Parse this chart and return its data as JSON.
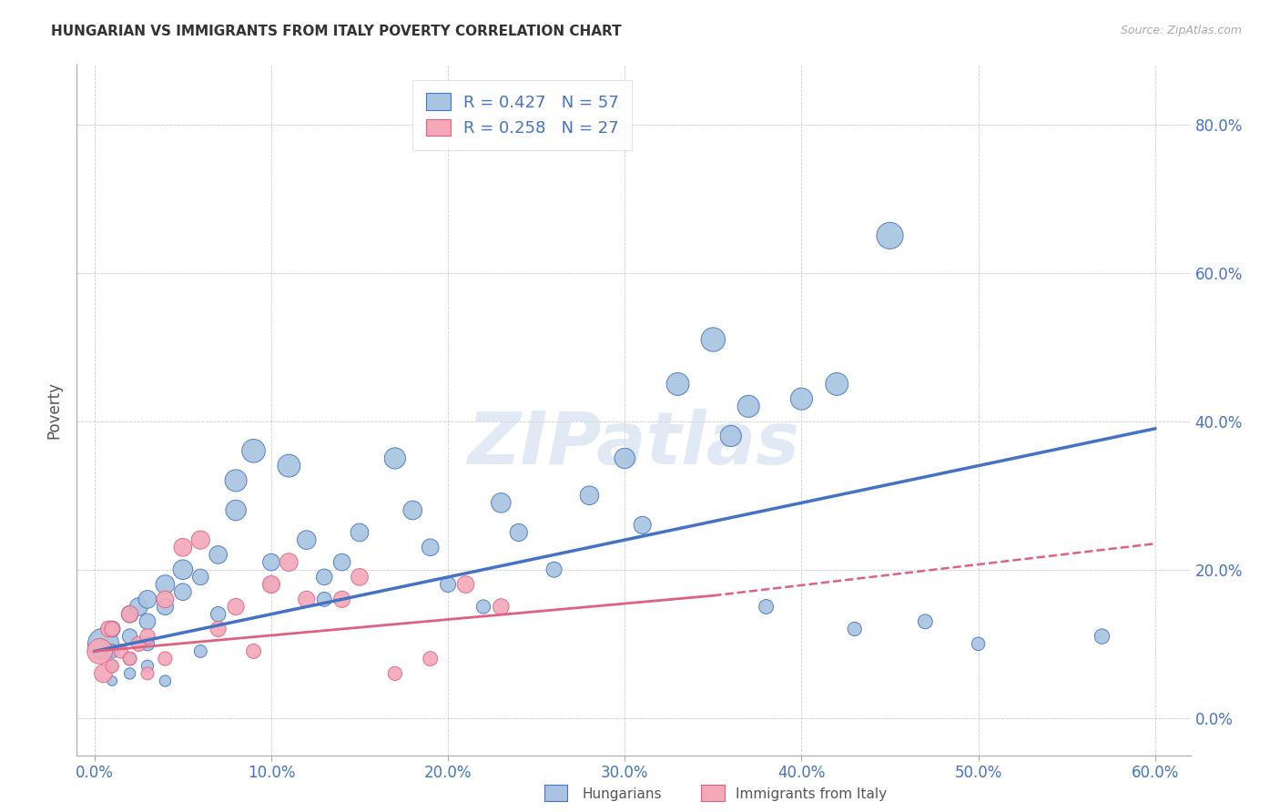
{
  "title": "HUNGARIAN VS IMMIGRANTS FROM ITALY POVERTY CORRELATION CHART",
  "source": "Source: ZipAtlas.com",
  "xlabel_ticks": [
    "0.0%",
    "10.0%",
    "20.0%",
    "30.0%",
    "40.0%",
    "50.0%",
    "60.0%"
  ],
  "ylabel_ticks": [
    "0.0%",
    "20.0%",
    "40.0%",
    "60.0%",
    "80.0%"
  ],
  "ylabel": "Poverty",
  "xlim": [
    -0.01,
    0.62
  ],
  "ylim": [
    -0.05,
    0.88
  ],
  "blue_R": 0.427,
  "blue_N": 57,
  "pink_R": 0.258,
  "pink_N": 27,
  "blue_color": "#a8c4e0",
  "pink_color": "#f4a8b8",
  "blue_line_color": "#4472c4",
  "pink_line_color": "#e06080",
  "legend_label_blue": "Hungarians",
  "legend_label_pink": "Immigrants from Italy",
  "watermark": "ZIPatlas",
  "blue_scatter_x": [
    0.005,
    0.01,
    0.01,
    0.01,
    0.01,
    0.02,
    0.02,
    0.02,
    0.02,
    0.025,
    0.03,
    0.03,
    0.03,
    0.03,
    0.04,
    0.04,
    0.04,
    0.05,
    0.05,
    0.06,
    0.06,
    0.07,
    0.07,
    0.08,
    0.08,
    0.09,
    0.1,
    0.1,
    0.11,
    0.12,
    0.13,
    0.13,
    0.14,
    0.15,
    0.17,
    0.18,
    0.19,
    0.2,
    0.22,
    0.23,
    0.24,
    0.26,
    0.28,
    0.3,
    0.31,
    0.33,
    0.35,
    0.36,
    0.37,
    0.38,
    0.4,
    0.42,
    0.43,
    0.45,
    0.47,
    0.5,
    0.57
  ],
  "blue_scatter_y": [
    0.1,
    0.12,
    0.09,
    0.07,
    0.05,
    0.14,
    0.11,
    0.08,
    0.06,
    0.15,
    0.16,
    0.13,
    0.1,
    0.07,
    0.18,
    0.15,
    0.05,
    0.2,
    0.17,
    0.19,
    0.09,
    0.22,
    0.14,
    0.32,
    0.28,
    0.36,
    0.21,
    0.18,
    0.34,
    0.24,
    0.19,
    0.16,
    0.21,
    0.25,
    0.35,
    0.28,
    0.23,
    0.18,
    0.15,
    0.29,
    0.25,
    0.2,
    0.3,
    0.35,
    0.26,
    0.45,
    0.51,
    0.38,
    0.42,
    0.15,
    0.43,
    0.45,
    0.12,
    0.65,
    0.13,
    0.1,
    0.11
  ],
  "blue_scatter_size": [
    300,
    80,
    60,
    40,
    30,
    90,
    70,
    55,
    40,
    100,
    100,
    80,
    60,
    45,
    110,
    85,
    40,
    120,
    90,
    80,
    50,
    100,
    70,
    150,
    130,
    170,
    90,
    75,
    160,
    110,
    80,
    65,
    90,
    100,
    140,
    110,
    90,
    75,
    60,
    120,
    95,
    75,
    110,
    130,
    95,
    160,
    180,
    140,
    150,
    65,
    150,
    160,
    60,
    220,
    65,
    55,
    70
  ],
  "pink_scatter_x": [
    0.003,
    0.005,
    0.008,
    0.01,
    0.01,
    0.015,
    0.02,
    0.02,
    0.025,
    0.03,
    0.03,
    0.04,
    0.04,
    0.05,
    0.06,
    0.07,
    0.08,
    0.09,
    0.1,
    0.11,
    0.12,
    0.14,
    0.15,
    0.17,
    0.19,
    0.21,
    0.23
  ],
  "pink_scatter_y": [
    0.09,
    0.06,
    0.12,
    0.07,
    0.12,
    0.09,
    0.08,
    0.14,
    0.1,
    0.06,
    0.11,
    0.16,
    0.08,
    0.23,
    0.24,
    0.12,
    0.15,
    0.09,
    0.18,
    0.21,
    0.16,
    0.16,
    0.19,
    0.06,
    0.08,
    0.18,
    0.15
  ],
  "pink_scatter_size": [
    200,
    100,
    80,
    55,
    70,
    60,
    55,
    85,
    70,
    50,
    70,
    90,
    60,
    100,
    105,
    75,
    85,
    65,
    95,
    100,
    85,
    85,
    90,
    60,
    65,
    90,
    80
  ]
}
